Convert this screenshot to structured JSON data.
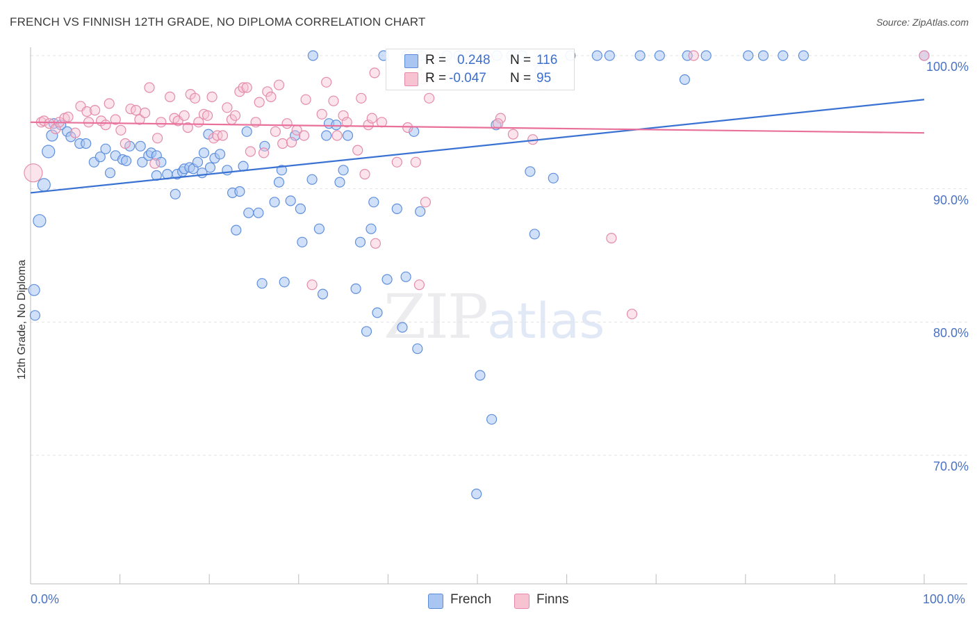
{
  "title": "FRENCH VS FINNISH 12TH GRADE, NO DIPLOMA CORRELATION CHART",
  "source": "Source: ZipAtlas.com",
  "watermark": {
    "zip": "ZIP",
    "atlas": "atlas"
  },
  "legend": {
    "rows": [
      {
        "r_label": "R =",
        "r_value": "0.248",
        "n_label": "N =",
        "n_value": "116",
        "color": "#a9c6f3",
        "border": "#5b8ad8"
      },
      {
        "r_label": "R =",
        "r_value": "-0.047",
        "n_label": "N =",
        "n_value": "95",
        "color": "#f7c3d3",
        "border": "#e589a8"
      }
    ]
  },
  "bottom_legend": [
    {
      "label": "French",
      "color": "#a9c6f3",
      "border": "#5b8ad8"
    },
    {
      "label": "Finns",
      "color": "#f7c3d3",
      "border": "#e589a8"
    }
  ],
  "colors": {
    "blue": "#3a72d3",
    "pink": "#e8709a",
    "blue_fill": "#a9c6f3",
    "pink_fill": "#f7c3d3"
  },
  "chart_data": {
    "type": "scatter",
    "title": "FRENCH VS FINNISH 12TH GRADE, NO DIPLOMA CORRELATION CHART",
    "xlabel": "",
    "ylabel": "12th Grade, No Diploma",
    "xlim": [
      0,
      100
    ],
    "ylim": [
      60,
      101
    ],
    "x_tick_labels": [
      "0.0%",
      "100.0%"
    ],
    "y_ticks": [
      70,
      80,
      90,
      100
    ],
    "y_tick_labels": [
      "70.0%",
      "80.0%",
      "90.0%",
      "100.0%"
    ],
    "grid": true,
    "legend_position": "top-center",
    "series": [
      {
        "name": "French",
        "color": "#a9c6f3",
        "trend": [
          [
            0,
            89.7
          ],
          [
            100,
            96.7
          ]
        ],
        "points": [
          [
            0.4,
            82.4,
            16
          ],
          [
            1.5,
            90.3,
            18
          ],
          [
            1.0,
            87.6,
            18
          ],
          [
            2.0,
            92.8,
            18
          ],
          [
            2.4,
            94.0,
            16
          ],
          [
            2.6,
            94.9,
            14
          ],
          [
            3.4,
            94.8,
            14
          ],
          [
            4.1,
            94.3,
            14
          ],
          [
            4.5,
            93.9,
            14
          ],
          [
            5.5,
            93.4,
            14
          ],
          [
            6.2,
            93.4,
            14
          ],
          [
            7.1,
            92.0,
            14
          ],
          [
            7.8,
            92.4,
            14
          ],
          [
            8.4,
            93.0,
            14
          ],
          [
            8.9,
            91.2,
            14
          ],
          [
            9.5,
            92.5,
            14
          ],
          [
            10.3,
            92.2,
            14
          ],
          [
            10.7,
            92.1,
            14
          ],
          [
            11.1,
            93.2,
            14
          ],
          [
            12.3,
            93.2,
            14
          ],
          [
            12.5,
            92.0,
            14
          ],
          [
            13.2,
            92.5,
            14
          ],
          [
            13.5,
            92.7,
            14
          ],
          [
            14.1,
            92.5,
            14
          ],
          [
            14.1,
            91.0,
            14
          ],
          [
            14.6,
            92.0,
            14
          ],
          [
            15.3,
            91.1,
            14
          ],
          [
            16.2,
            89.6,
            14
          ],
          [
            16.4,
            91.1,
            14
          ],
          [
            17.0,
            91.3,
            14
          ],
          [
            17.2,
            91.5,
            14
          ],
          [
            17.8,
            91.6,
            14
          ],
          [
            18.2,
            91.5,
            14
          ],
          [
            18.7,
            92.0,
            14
          ],
          [
            19.2,
            91.2,
            14
          ],
          [
            19.4,
            92.7,
            14
          ],
          [
            19.9,
            94.1,
            14
          ],
          [
            20.1,
            91.6,
            14
          ],
          [
            20.6,
            92.3,
            14
          ],
          [
            21.2,
            92.6,
            14
          ],
          [
            22.0,
            91.4,
            14
          ],
          [
            22.6,
            89.7,
            14
          ],
          [
            23.0,
            86.9,
            14
          ],
          [
            23.4,
            89.8,
            14
          ],
          [
            23.8,
            91.7,
            14
          ],
          [
            24.2,
            94.3,
            14
          ],
          [
            24.4,
            88.2,
            14
          ],
          [
            25.5,
            88.2,
            14
          ],
          [
            25.9,
            82.9,
            14
          ],
          [
            26.2,
            93.2,
            14
          ],
          [
            27.3,
            89.0,
            14
          ],
          [
            27.8,
            90.5,
            14
          ],
          [
            28.1,
            91.4,
            14
          ],
          [
            28.4,
            83.0,
            14
          ],
          [
            29.1,
            89.1,
            14
          ],
          [
            29.6,
            94.0,
            14
          ],
          [
            30.2,
            88.5,
            14
          ],
          [
            30.4,
            86.0,
            14
          ],
          [
            31.5,
            90.7,
            14
          ],
          [
            32.3,
            87.0,
            14
          ],
          [
            32.7,
            82.1,
            14
          ],
          [
            33.1,
            94.0,
            14
          ],
          [
            33.4,
            94.9,
            14
          ],
          [
            34.2,
            94.8,
            14
          ],
          [
            34.6,
            90.5,
            14
          ],
          [
            35.0,
            91.4,
            14
          ],
          [
            35.5,
            94.0,
            14
          ],
          [
            36.4,
            82.5,
            14
          ],
          [
            36.9,
            86.0,
            14
          ],
          [
            37.6,
            79.3,
            14
          ],
          [
            38.1,
            87.0,
            14
          ],
          [
            38.4,
            89.0,
            14
          ],
          [
            38.8,
            80.7,
            14
          ],
          [
            39.9,
            83.2,
            14
          ],
          [
            41.0,
            88.5,
            14
          ],
          [
            41.6,
            79.6,
            14
          ],
          [
            42.0,
            83.4,
            14
          ],
          [
            42.9,
            94.3,
            14
          ],
          [
            43.3,
            78.0,
            14
          ],
          [
            43.6,
            88.3,
            14
          ],
          [
            49.9,
            67.1,
            14
          ],
          [
            50.3,
            76.0,
            14
          ],
          [
            51.6,
            72.7,
            14
          ],
          [
            52.1,
            94.8,
            14
          ],
          [
            55.9,
            91.3,
            14
          ],
          [
            56.4,
            86.6,
            14
          ],
          [
            57.0,
            98.9,
            14
          ],
          [
            58.5,
            90.8,
            14
          ],
          [
            73.2,
            98.2,
            14
          ],
          [
            0.5,
            80.5,
            14
          ],
          [
            39.5,
            100,
            14
          ],
          [
            42.1,
            100,
            14
          ],
          [
            43.7,
            100,
            14
          ],
          [
            45.2,
            100,
            14
          ],
          [
            46.6,
            100,
            14
          ],
          [
            47.9,
            100,
            14
          ],
          [
            49.2,
            100,
            14
          ],
          [
            52.2,
            100,
            14
          ],
          [
            53.8,
            100,
            14
          ],
          [
            55.0,
            100,
            14
          ],
          [
            60.4,
            100,
            14
          ],
          [
            63.4,
            100,
            14
          ],
          [
            64.8,
            100,
            14
          ],
          [
            68.2,
            100,
            14
          ],
          [
            70.4,
            100,
            14
          ],
          [
            73.5,
            100,
            14
          ],
          [
            75.6,
            100,
            14
          ],
          [
            80.3,
            100,
            14
          ],
          [
            82.0,
            100,
            14
          ],
          [
            84.2,
            100,
            14
          ],
          [
            86.5,
            100,
            14
          ],
          [
            100,
            100,
            14
          ],
          [
            31.6,
            100,
            14
          ]
        ]
      },
      {
        "name": "Finns",
        "color": "#f7c3d3",
        "trend": [
          [
            0,
            95.0
          ],
          [
            100,
            94.2
          ]
        ],
        "points": [
          [
            0.3,
            91.2,
            26
          ],
          [
            1.2,
            95.0,
            14
          ],
          [
            1.5,
            95.1,
            14
          ],
          [
            2.1,
            94.9,
            14
          ],
          [
            2.8,
            94.5,
            14
          ],
          [
            3.2,
            95.0,
            14
          ],
          [
            3.8,
            95.3,
            14
          ],
          [
            4.2,
            95.4,
            14
          ],
          [
            5.0,
            94.2,
            14
          ],
          [
            5.6,
            96.2,
            14
          ],
          [
            6.3,
            95.8,
            14
          ],
          [
            6.5,
            95.0,
            14
          ],
          [
            7.2,
            95.9,
            14
          ],
          [
            7.9,
            95.1,
            14
          ],
          [
            8.4,
            94.8,
            14
          ],
          [
            8.8,
            96.4,
            14
          ],
          [
            9.5,
            95.2,
            14
          ],
          [
            10.1,
            94.4,
            14
          ],
          [
            10.6,
            93.4,
            14
          ],
          [
            11.2,
            96.0,
            14
          ],
          [
            11.8,
            95.9,
            14
          ],
          [
            12.2,
            95.2,
            14
          ],
          [
            12.8,
            95.7,
            14
          ],
          [
            13.3,
            97.6,
            14
          ],
          [
            13.9,
            91.9,
            14
          ],
          [
            14.2,
            93.8,
            14
          ],
          [
            14.6,
            95.0,
            14
          ],
          [
            15.6,
            96.9,
            14
          ],
          [
            16.1,
            95.3,
            14
          ],
          [
            16.5,
            95.1,
            14
          ],
          [
            17.2,
            95.5,
            14
          ],
          [
            17.6,
            94.6,
            14
          ],
          [
            17.9,
            97.1,
            14
          ],
          [
            18.4,
            96.8,
            14
          ],
          [
            18.8,
            95.0,
            14
          ],
          [
            19.4,
            95.6,
            14
          ],
          [
            19.8,
            95.5,
            14
          ],
          [
            20.3,
            96.9,
            14
          ],
          [
            20.5,
            93.8,
            14
          ],
          [
            20.9,
            94.0,
            14
          ],
          [
            21.5,
            94.0,
            14
          ],
          [
            22.0,
            96.1,
            14
          ],
          [
            22.5,
            95.2,
            14
          ],
          [
            22.9,
            95.5,
            14
          ],
          [
            23.4,
            97.3,
            14
          ],
          [
            23.8,
            97.6,
            14
          ],
          [
            24.2,
            97.6,
            14
          ],
          [
            24.6,
            92.8,
            14
          ],
          [
            25.2,
            95.0,
            14
          ],
          [
            25.6,
            96.5,
            14
          ],
          [
            26.1,
            92.7,
            14
          ],
          [
            26.5,
            97.3,
            14
          ],
          [
            26.9,
            96.9,
            14
          ],
          [
            27.4,
            94.3,
            14
          ],
          [
            27.8,
            97.8,
            14
          ],
          [
            28.2,
            93.4,
            14
          ],
          [
            28.7,
            94.9,
            14
          ],
          [
            29.2,
            93.5,
            14
          ],
          [
            29.8,
            94.4,
            14
          ],
          [
            30.8,
            96.7,
            14
          ],
          [
            31.5,
            82.8,
            14
          ],
          [
            32.6,
            95.6,
            14
          ],
          [
            33.1,
            98.0,
            14
          ],
          [
            33.9,
            96.6,
            14
          ],
          [
            34.3,
            94.0,
            14
          ],
          [
            35.0,
            95.5,
            14
          ],
          [
            35.4,
            95.0,
            14
          ],
          [
            36.6,
            92.9,
            14
          ],
          [
            37.0,
            96.8,
            14
          ],
          [
            37.4,
            91.1,
            14
          ],
          [
            37.8,
            94.8,
            14
          ],
          [
            38.2,
            95.3,
            14
          ],
          [
            38.6,
            85.9,
            14
          ],
          [
            39.3,
            95.0,
            14
          ],
          [
            41.0,
            92.0,
            14
          ],
          [
            42.2,
            94.6,
            14
          ],
          [
            43.1,
            92.0,
            14
          ],
          [
            43.5,
            82.8,
            14
          ],
          [
            44.2,
            89.0,
            14
          ],
          [
            44.6,
            96.8,
            14
          ],
          [
            52.6,
            95.3,
            14
          ],
          [
            52.3,
            94.9,
            14
          ],
          [
            54.0,
            94.1,
            14
          ],
          [
            56.2,
            93.7,
            14
          ],
          [
            57.3,
            97.8,
            14
          ],
          [
            65.0,
            86.3,
            14
          ],
          [
            67.3,
            80.6,
            14
          ],
          [
            74.2,
            100,
            14
          ],
          [
            100,
            100,
            14
          ],
          [
            38.5,
            98.7,
            14
          ],
          [
            44.0,
            98.2,
            14
          ],
          [
            45.2,
            100,
            14
          ],
          [
            48.6,
            100,
            14
          ],
          [
            51.0,
            100,
            14
          ],
          [
            30.6,
            94.0,
            14
          ]
        ]
      }
    ]
  }
}
